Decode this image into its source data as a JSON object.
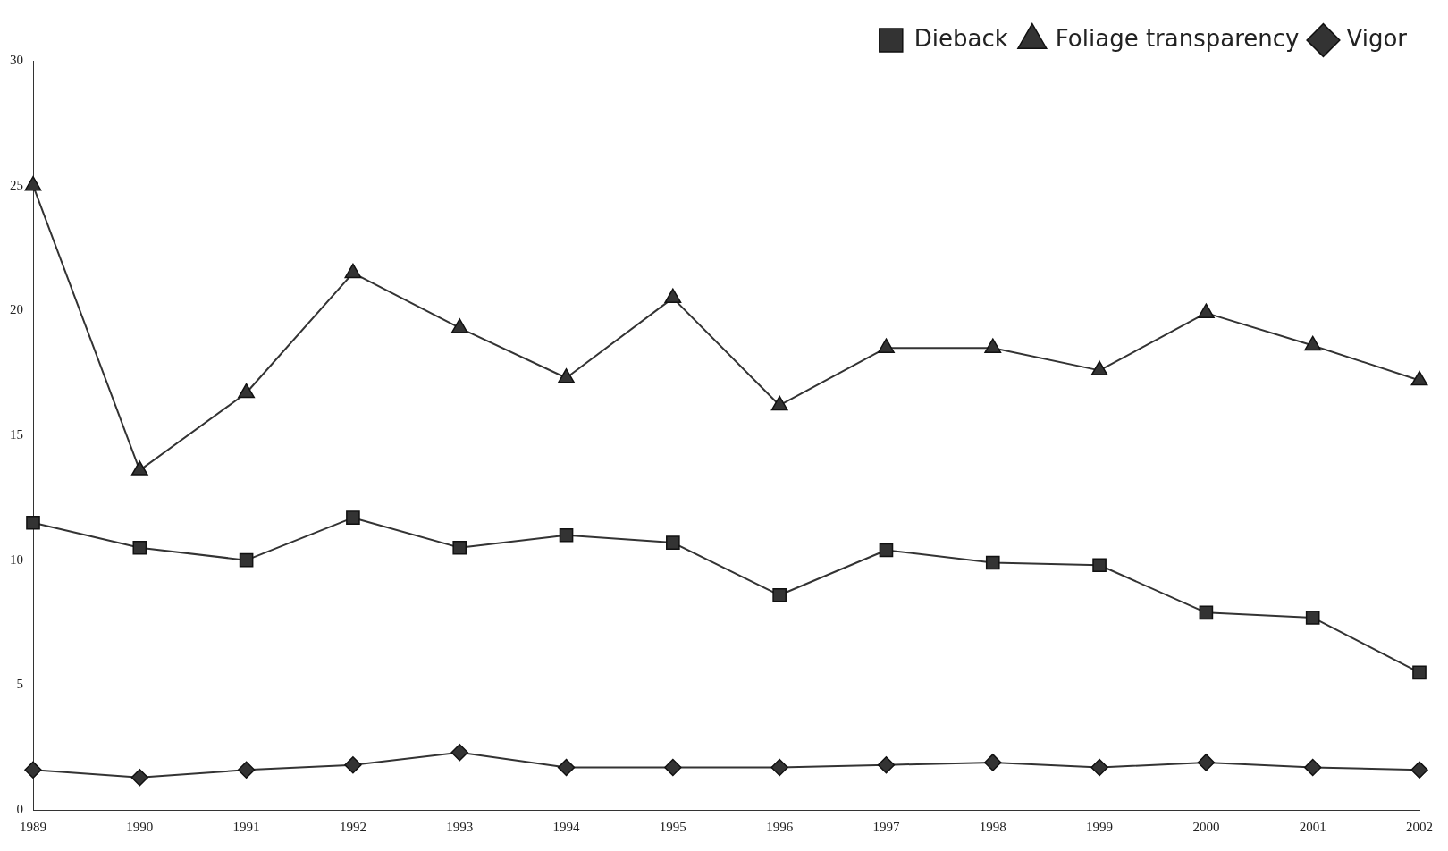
{
  "chart_data": {
    "type": "line",
    "categories": [
      "1989",
      "1990",
      "1991",
      "1992",
      "1993",
      "1994",
      "1995",
      "1996",
      "1997",
      "1998",
      "1999",
      "2000",
      "2001",
      "2002"
    ],
    "series": [
      {
        "name": "Dieback",
        "color": "#333333",
        "marker": "square",
        "values": [
          11.5,
          10.5,
          10.0,
          11.7,
          10.5,
          11.0,
          10.7,
          8.6,
          10.4,
          9.9,
          9.8,
          7.9,
          7.7,
          5.5
        ]
      },
      {
        "name": "Foliage transparency",
        "color": "#333333",
        "marker": "triangle",
        "values": [
          25.0,
          13.6,
          16.7,
          21.5,
          19.3,
          17.3,
          20.5,
          16.2,
          18.5,
          18.5,
          17.6,
          19.9,
          18.6,
          17.2
        ]
      },
      {
        "name": "Vigor",
        "color": "#333333",
        "marker": "diamond",
        "values": [
          1.6,
          1.3,
          1.6,
          1.8,
          2.3,
          1.7,
          1.7,
          1.7,
          1.8,
          1.9,
          1.7,
          1.9,
          1.7,
          1.6
        ]
      }
    ],
    "ylim": [
      0,
      30
    ],
    "yticks": [
      0,
      5,
      10,
      15,
      20,
      25,
      30
    ],
    "grid": false,
    "legend": "top right"
  }
}
